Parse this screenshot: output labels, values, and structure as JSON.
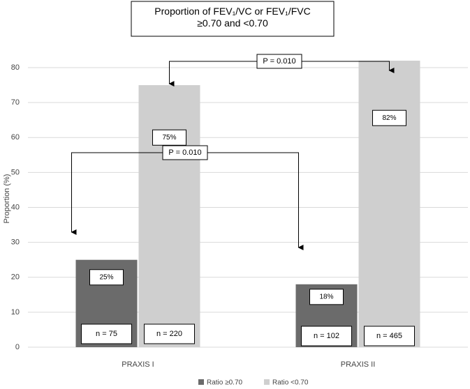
{
  "chart_data": {
    "type": "bar",
    "title": "Proportion of FEV₁/VC or FEV₁/FVC ≥0.70 and <0.70",
    "y_label": "Proportion (%)",
    "categories": [
      "PRAXIS I",
      "PRAXIS II"
    ],
    "series": [
      {
        "name": "Ratio ≥0.70",
        "color": "#6b6b6b",
        "values": [
          25,
          18
        ],
        "value_labels": [
          "25%",
          "18%"
        ],
        "n_labels": [
          "n = 75",
          "n = 102"
        ]
      },
      {
        "name": "Ratio <0.70",
        "color": "#cfcfcf",
        "values": [
          75,
          82
        ],
        "value_labels": [
          "75%",
          "82%"
        ],
        "n_labels": [
          "n = 220",
          "n = 465"
        ]
      }
    ],
    "annotations": [
      "P = 0.010",
      "P = 0.010"
    ],
    "ylim": [
      0,
      85
    ],
    "yticks": [
      0,
      10,
      20,
      30,
      40,
      50,
      60,
      70,
      80
    ],
    "grid": true,
    "legend": "bottom"
  }
}
